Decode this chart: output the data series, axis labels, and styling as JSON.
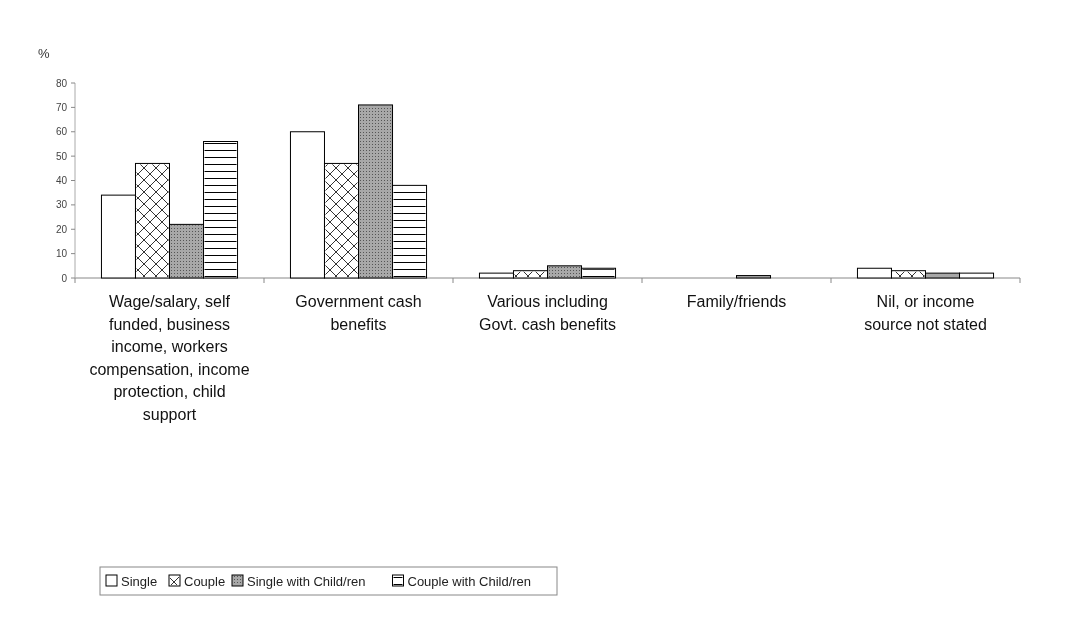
{
  "chart_data": {
    "type": "bar",
    "ylabel": "%",
    "categories": [
      "Wage/salary, self funded, business income, workers compensation, income protection, child support",
      "Government cash benefits",
      "Various including Govt. cash benefits",
      "Family/friends",
      "Nil, or income source not stated"
    ],
    "series": [
      {
        "name": "Single",
        "color": "#ffffff",
        "values": [
          34,
          60,
          2,
          0,
          4
        ]
      },
      {
        "name": "Couple",
        "color": "#ffffff",
        "values": [
          47,
          47,
          3,
          0,
          3
        ]
      },
      {
        "name": "Single with Child/ren",
        "color": "#a8a8a8",
        "values": [
          22,
          71,
          5,
          1,
          2
        ]
      },
      {
        "name": "Couple with Child/ren",
        "color": "#ffffff",
        "values": [
          56,
          38,
          4,
          0,
          2
        ]
      }
    ],
    "ylim": [
      0,
      80
    ],
    "yticks": [
      0,
      10,
      20,
      30,
      40,
      50,
      60,
      70,
      80
    ],
    "grid": false,
    "legend": "bottom"
  }
}
